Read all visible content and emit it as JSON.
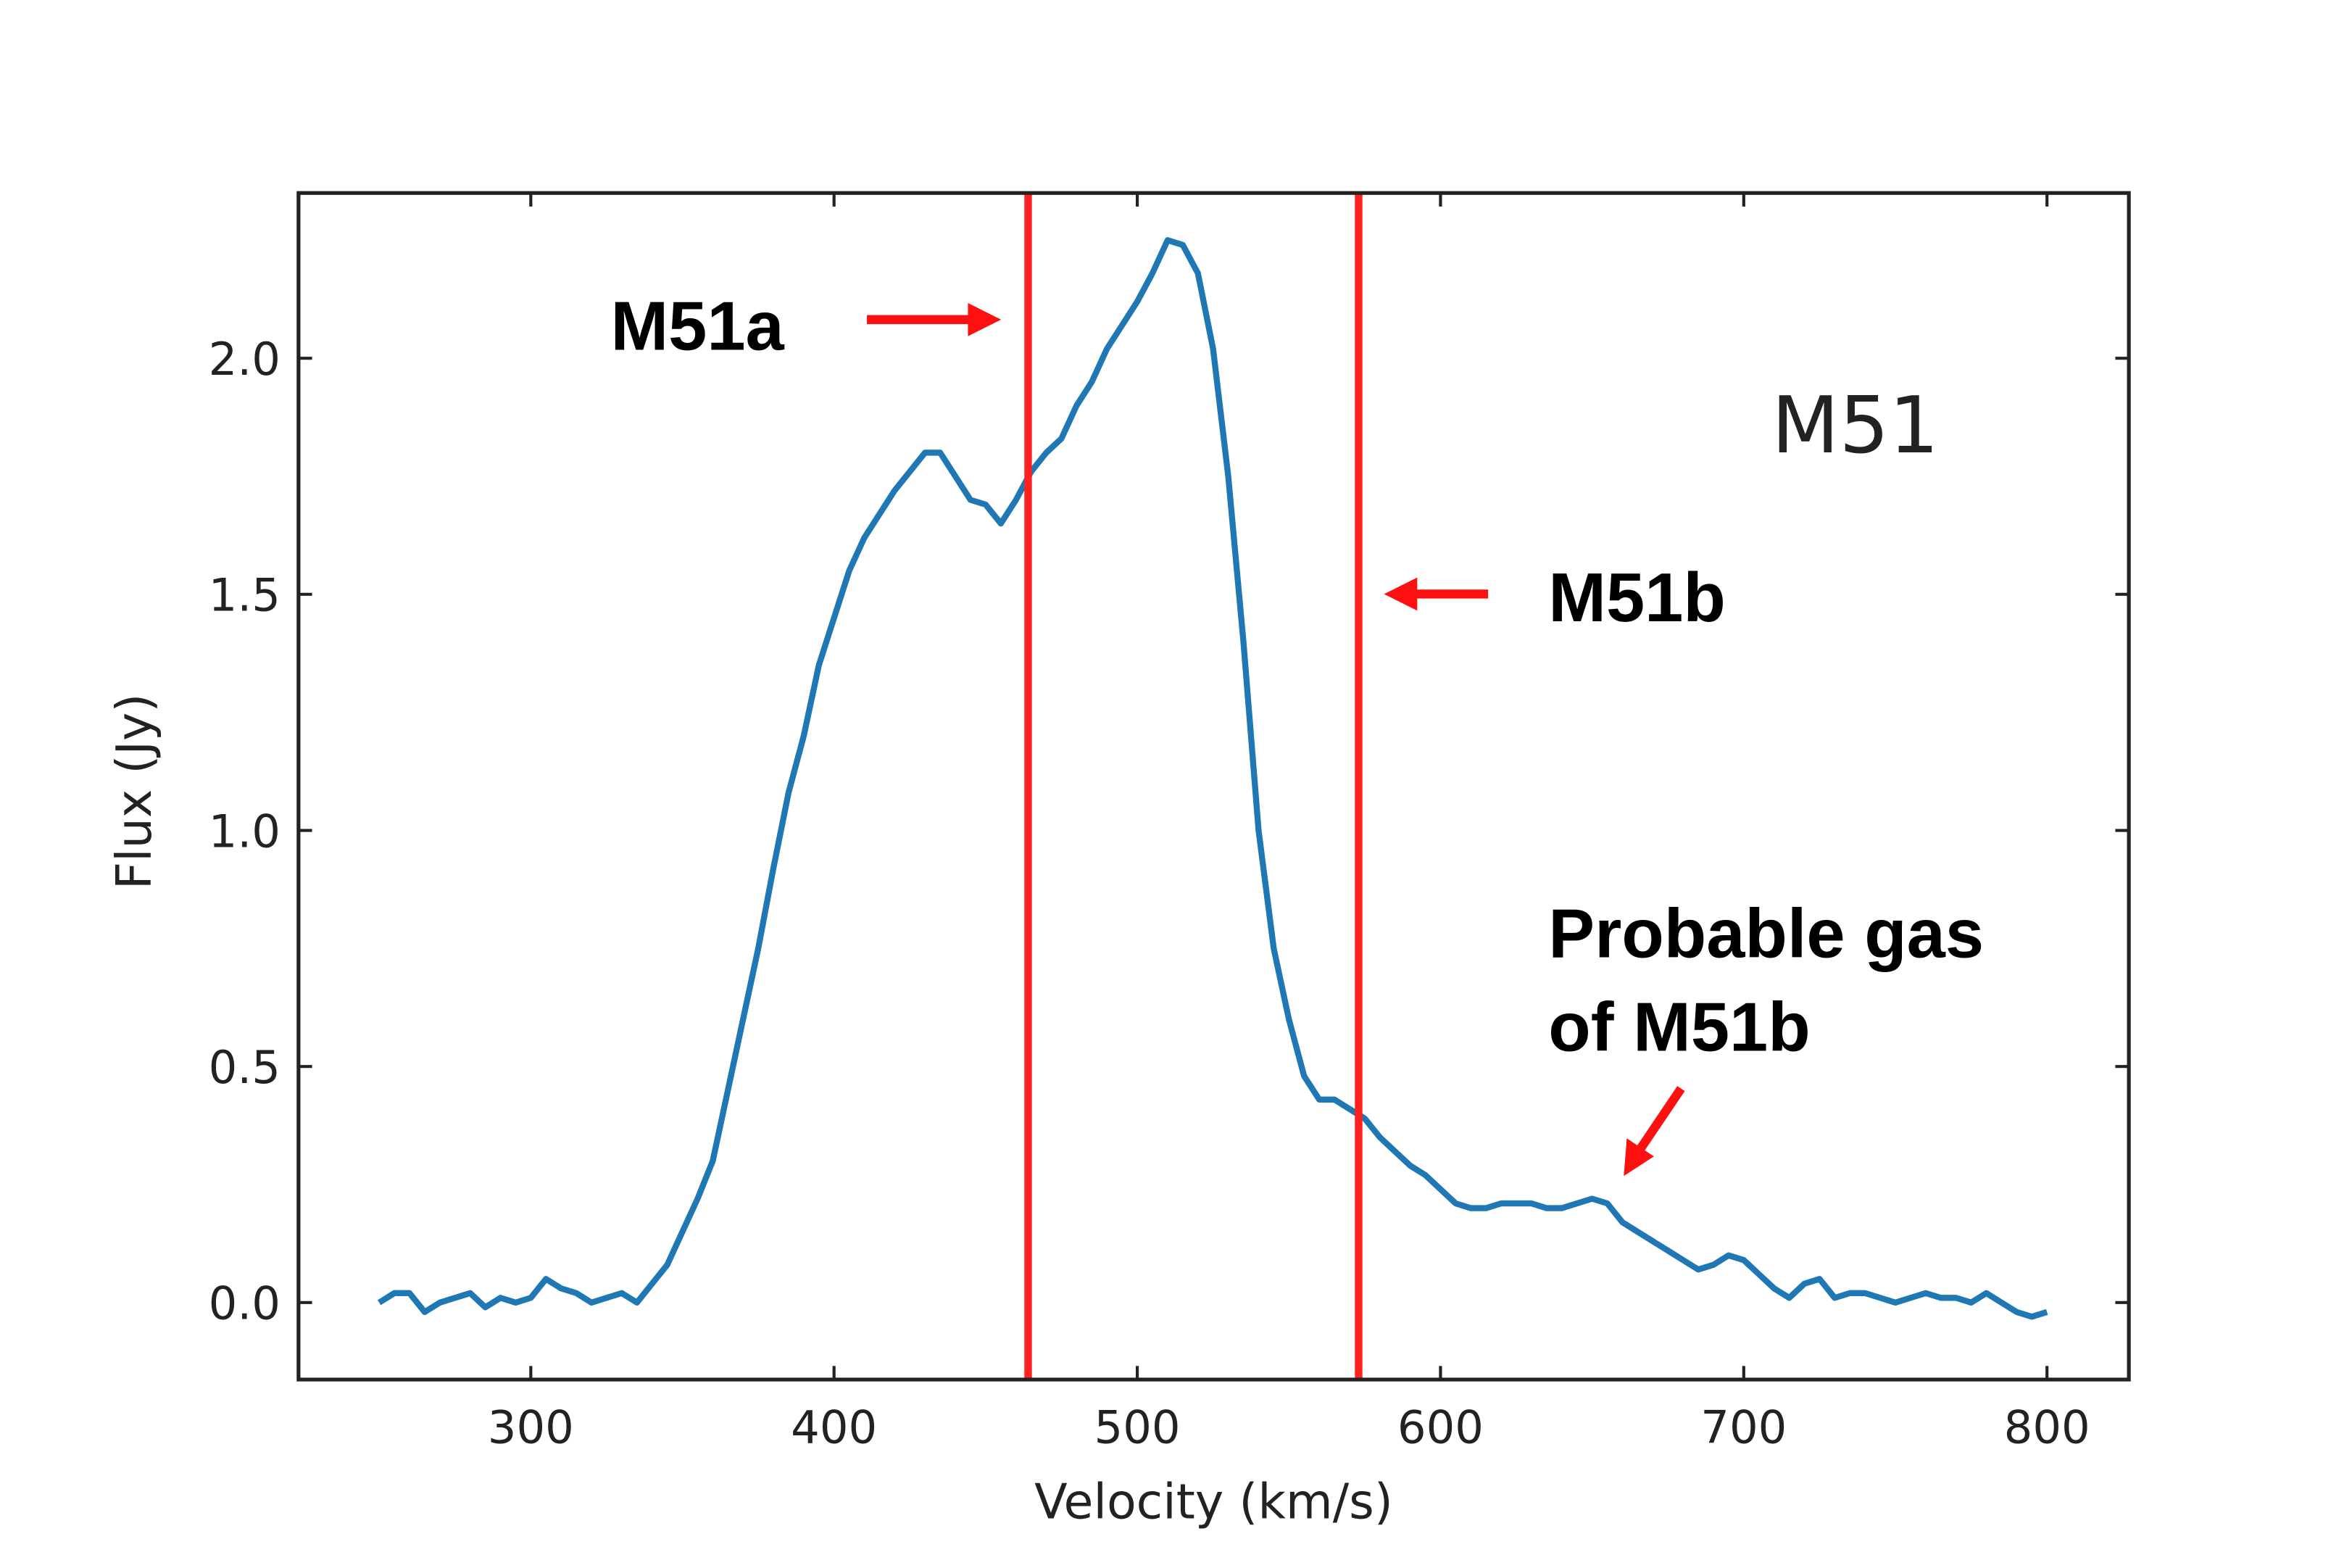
{
  "chart_data": {
    "type": "line",
    "xlabel": "Velocity (km/s)",
    "ylabel": "Flux (Jy)",
    "x": [
      250,
      255,
      260,
      265,
      270,
      275,
      280,
      285,
      290,
      295,
      300,
      305,
      310,
      315,
      320,
      325,
      330,
      335,
      340,
      345,
      350,
      355,
      360,
      365,
      370,
      375,
      380,
      385,
      390,
      395,
      400,
      405,
      410,
      415,
      420,
      425,
      430,
      435,
      440,
      445,
      450,
      455,
      460,
      465,
      470,
      475,
      480,
      485,
      490,
      495,
      500,
      505,
      510,
      515,
      520,
      525,
      530,
      535,
      540,
      545,
      550,
      555,
      560,
      565,
      570,
      575,
      580,
      585,
      590,
      595,
      600,
      605,
      610,
      615,
      620,
      625,
      630,
      635,
      640,
      645,
      650,
      655,
      660,
      665,
      670,
      675,
      680,
      685,
      690,
      695,
      700,
      705,
      710,
      715,
      720,
      725,
      730,
      735,
      740,
      745,
      750,
      755,
      760,
      765,
      770,
      775,
      780,
      785,
      790,
      795,
      800
    ],
    "values": [
      0.0,
      0.02,
      0.02,
      -0.02,
      0.0,
      0.01,
      0.02,
      -0.01,
      0.01,
      0.0,
      0.01,
      0.05,
      0.03,
      0.02,
      0.0,
      0.01,
      0.02,
      0.0,
      0.04,
      0.08,
      0.15,
      0.22,
      0.3,
      0.45,
      0.6,
      0.75,
      0.92,
      1.08,
      1.2,
      1.35,
      1.45,
      1.55,
      1.62,
      1.67,
      1.72,
      1.76,
      1.8,
      1.8,
      1.75,
      1.7,
      1.69,
      1.65,
      1.7,
      1.76,
      1.8,
      1.83,
      1.9,
      1.95,
      2.02,
      2.07,
      2.12,
      2.18,
      2.25,
      2.24,
      2.18,
      2.02,
      1.75,
      1.4,
      1.0,
      0.75,
      0.6,
      0.48,
      0.43,
      0.43,
      0.41,
      0.39,
      0.35,
      0.32,
      0.29,
      0.27,
      0.24,
      0.21,
      0.2,
      0.2,
      0.21,
      0.21,
      0.21,
      0.2,
      0.2,
      0.21,
      0.22,
      0.21,
      0.17,
      0.15,
      0.13,
      0.11,
      0.09,
      0.07,
      0.08,
      0.1,
      0.09,
      0.06,
      0.03,
      0.01,
      0.04,
      0.05,
      0.01,
      0.02,
      0.02,
      0.01,
      0.0,
      0.01,
      0.02,
      0.01,
      0.01,
      0.0,
      0.02,
      0.0,
      -0.02,
      -0.03,
      -0.02
    ],
    "color": "#1f77b4",
    "xlim": [
      223.4,
      827
    ],
    "ylim": [
      -0.163,
      2.35
    ],
    "xticks": [
      300,
      400,
      500,
      600,
      700,
      800
    ],
    "yticks": [
      {
        "value": 0,
        "label": "0.0"
      },
      {
        "value": 0.5,
        "label": "0.5"
      },
      {
        "value": 1,
        "label": "1.0"
      },
      {
        "value": 1.5,
        "label": "1.5"
      },
      {
        "value": 2,
        "label": "2.0"
      }
    ],
    "vertical_lines": [
      {
        "x": 464,
        "color": "#ff2020"
      },
      {
        "x": 573,
        "color": "#ff2020"
      }
    ],
    "annotations": [
      "M51",
      "M51a",
      "M51b",
      "Probable gas",
      "of M51b"
    ]
  }
}
